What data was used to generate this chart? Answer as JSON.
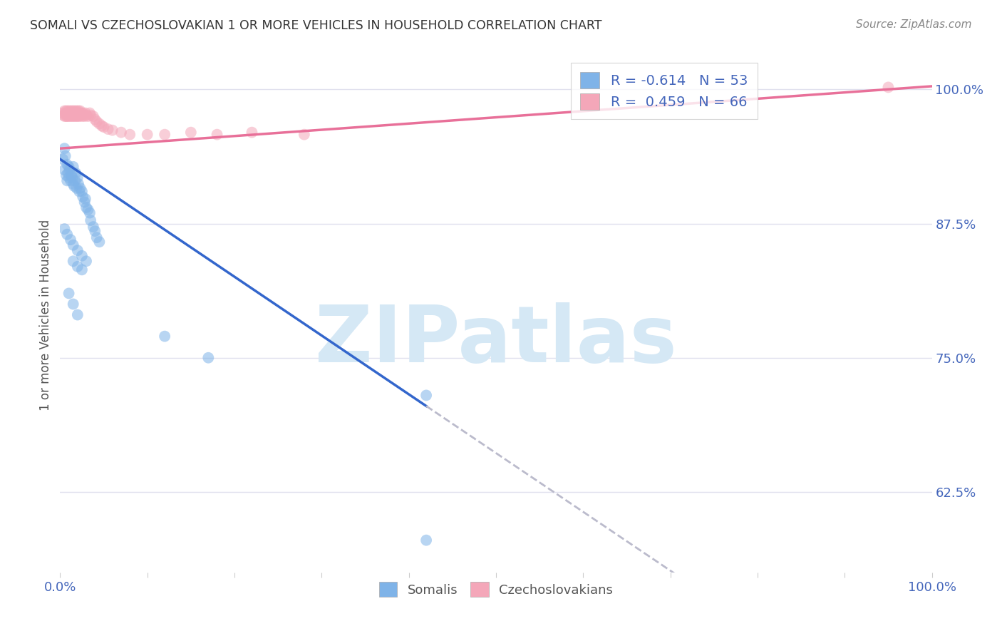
{
  "title": "SOMALI VS CZECHOSLOVAKIAN 1 OR MORE VEHICLES IN HOUSEHOLD CORRELATION CHART",
  "source": "Source: ZipAtlas.com",
  "ylabel": "1 or more Vehicles in Household",
  "somali_color": "#7fb3e8",
  "czech_color": "#f4a7b9",
  "somali_R": -0.614,
  "somali_N": 53,
  "czech_R": 0.459,
  "czech_N": 66,
  "title_color": "#333333",
  "axis_color": "#4466bb",
  "grid_color": "#e0e0ee",
  "watermark": "ZIPatlas",
  "watermark_color": "#d5e8f5",
  "trendline_blue_color": "#3366cc",
  "trendline_pink_color": "#e87099",
  "trendline_dashed_color": "#bbbbcc",
  "background_color": "#ffffff",
  "somali_x": [
    0.003,
    0.005,
    0.005,
    0.006,
    0.007,
    0.008,
    0.008,
    0.009,
    0.01,
    0.01,
    0.011,
    0.012,
    0.013,
    0.014,
    0.015,
    0.015,
    0.016,
    0.017,
    0.018,
    0.019,
    0.02,
    0.021,
    0.022,
    0.023,
    0.025,
    0.026,
    0.028,
    0.029,
    0.03,
    0.032,
    0.034,
    0.035,
    0.038,
    0.04,
    0.042,
    0.045,
    0.005,
    0.008,
    0.012,
    0.015,
    0.02,
    0.025,
    0.03,
    0.015,
    0.02,
    0.025,
    0.01,
    0.015,
    0.02,
    0.12,
    0.17,
    0.42,
    0.42
  ],
  "somali_y": [
    0.935,
    0.945,
    0.925,
    0.938,
    0.92,
    0.93,
    0.915,
    0.922,
    0.928,
    0.918,
    0.925,
    0.915,
    0.92,
    0.918,
    0.912,
    0.928,
    0.91,
    0.915,
    0.922,
    0.908,
    0.918,
    0.912,
    0.905,
    0.908,
    0.905,
    0.9,
    0.895,
    0.898,
    0.89,
    0.888,
    0.885,
    0.878,
    0.872,
    0.868,
    0.862,
    0.858,
    0.87,
    0.865,
    0.86,
    0.855,
    0.85,
    0.845,
    0.84,
    0.84,
    0.835,
    0.832,
    0.81,
    0.8,
    0.79,
    0.77,
    0.75,
    0.715,
    0.58
  ],
  "czech_x": [
    0.003,
    0.004,
    0.005,
    0.005,
    0.006,
    0.007,
    0.007,
    0.008,
    0.008,
    0.009,
    0.009,
    0.01,
    0.01,
    0.011,
    0.011,
    0.012,
    0.012,
    0.013,
    0.013,
    0.014,
    0.014,
    0.015,
    0.015,
    0.016,
    0.016,
    0.017,
    0.017,
    0.018,
    0.018,
    0.019,
    0.019,
    0.02,
    0.02,
    0.021,
    0.021,
    0.022,
    0.022,
    0.023,
    0.023,
    0.024,
    0.025,
    0.026,
    0.027,
    0.028,
    0.029,
    0.03,
    0.032,
    0.034,
    0.035,
    0.038,
    0.04,
    0.042,
    0.045,
    0.048,
    0.05,
    0.055,
    0.06,
    0.07,
    0.08,
    0.1,
    0.12,
    0.15,
    0.18,
    0.22,
    0.28,
    0.95
  ],
  "czech_y": [
    0.978,
    0.976,
    0.98,
    0.975,
    0.978,
    0.975,
    0.98,
    0.978,
    0.975,
    0.98,
    0.976,
    0.978,
    0.975,
    0.98,
    0.976,
    0.978,
    0.975,
    0.98,
    0.976,
    0.978,
    0.975,
    0.98,
    0.976,
    0.978,
    0.975,
    0.98,
    0.976,
    0.978,
    0.975,
    0.98,
    0.976,
    0.978,
    0.975,
    0.98,
    0.976,
    0.978,
    0.975,
    0.98,
    0.976,
    0.978,
    0.975,
    0.978,
    0.976,
    0.975,
    0.978,
    0.976,
    0.975,
    0.978,
    0.976,
    0.975,
    0.972,
    0.97,
    0.968,
    0.966,
    0.965,
    0.963,
    0.962,
    0.96,
    0.958,
    0.958,
    0.958,
    0.96,
    0.958,
    0.96,
    0.958,
    1.002
  ],
  "xlim": [
    0.0,
    1.0
  ],
  "ylim": [
    0.55,
    1.03
  ],
  "yticks": [
    0.625,
    0.75,
    0.875,
    1.0
  ],
  "ytick_labels": [
    "62.5%",
    "75.0%",
    "87.5%",
    "100.0%"
  ]
}
